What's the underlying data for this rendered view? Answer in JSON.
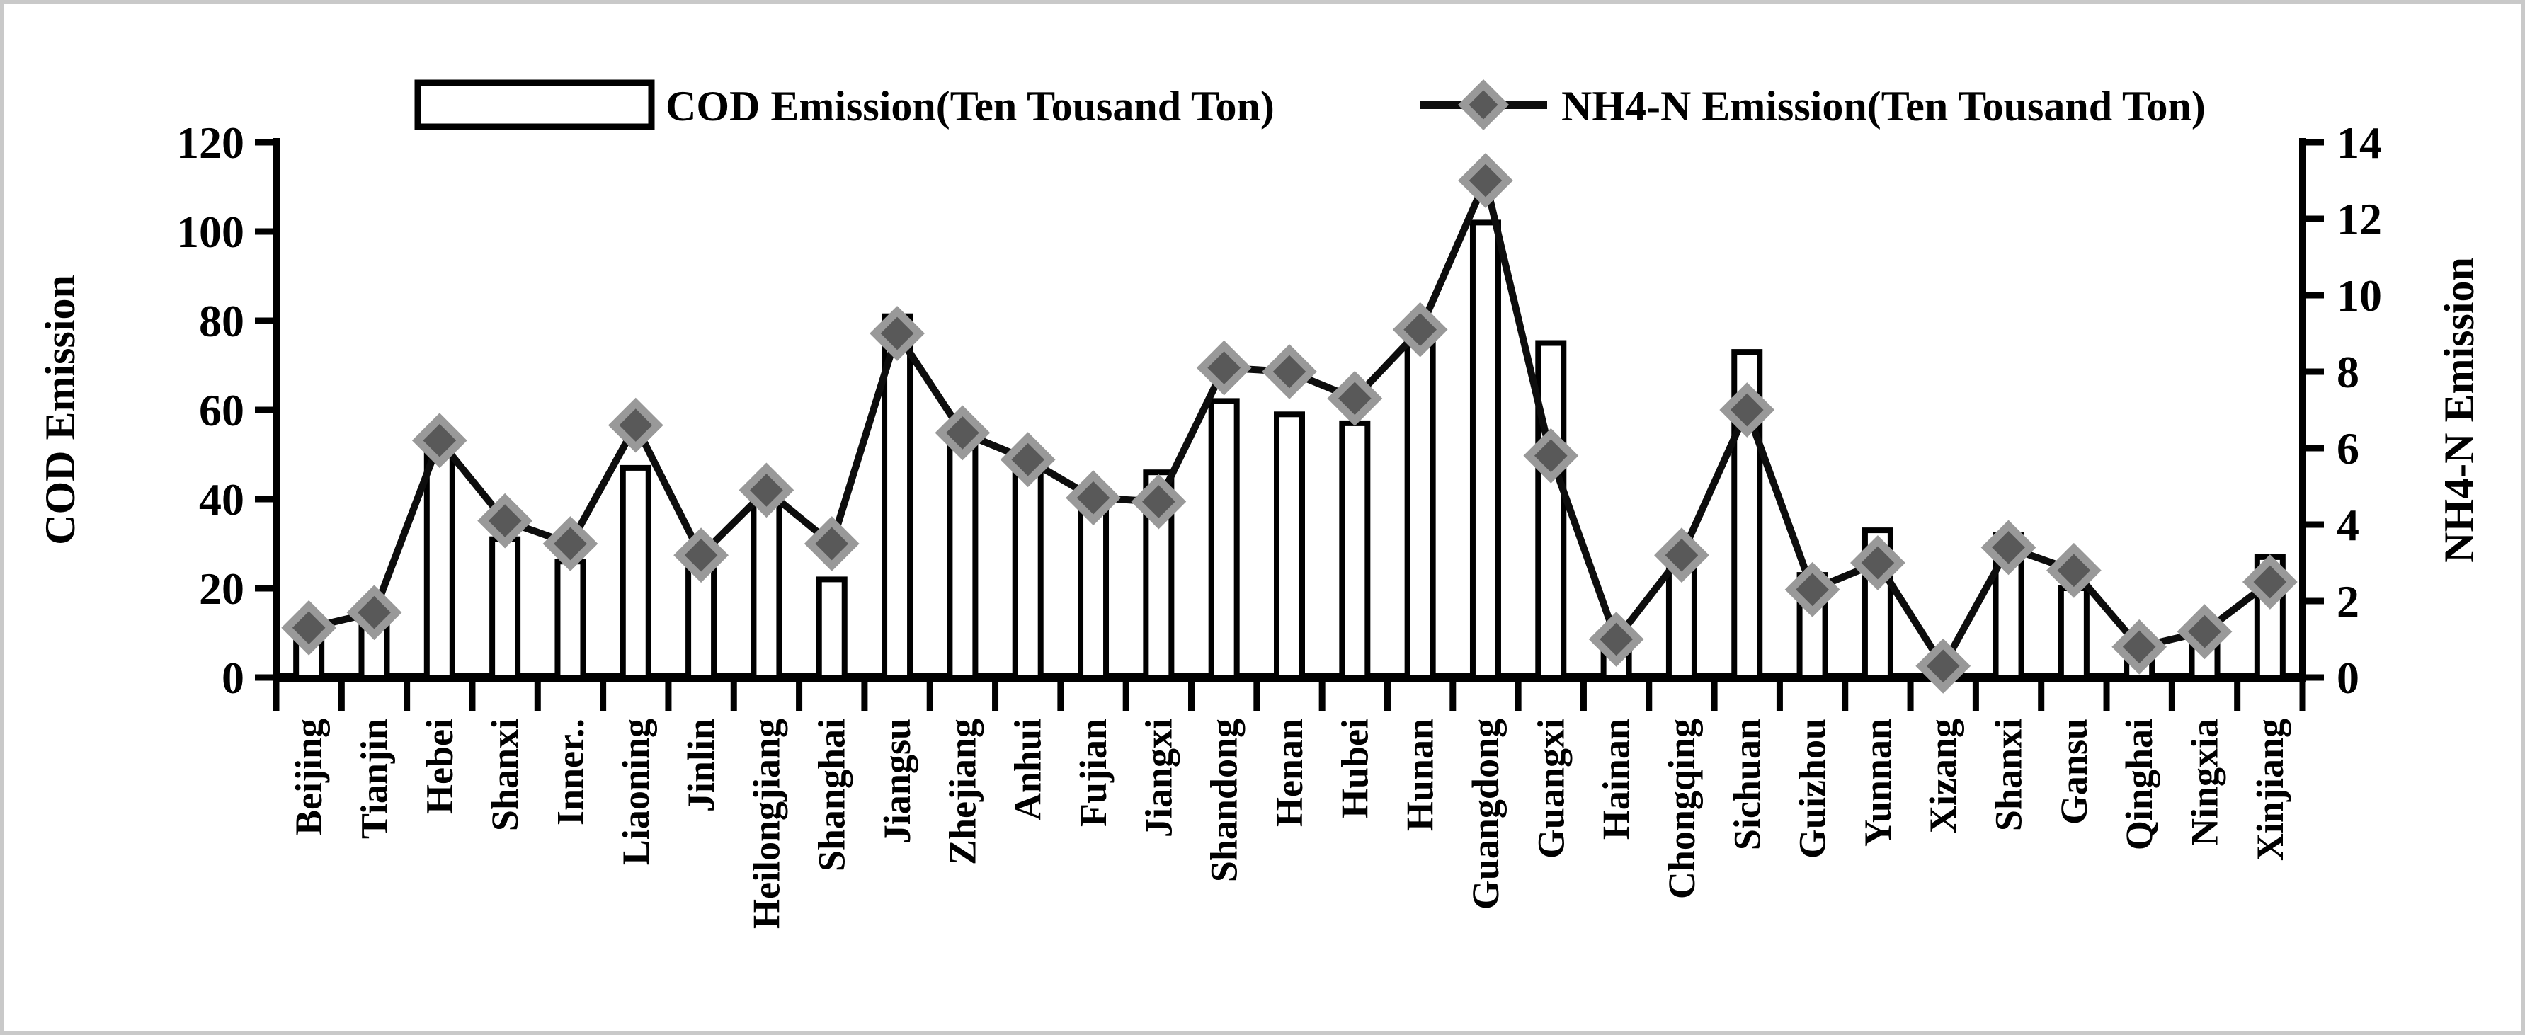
{
  "figure": {
    "description": "Dual-axis combo chart of COD and NH4-N emissions by Chinese province",
    "background": "#ffffff",
    "frame_color": "#c9c9c9"
  },
  "legend": {
    "bar_label": "COD Emission(Ten Tousand Ton)",
    "line_label": "NH4-N Emission(Ten Tousand Ton)"
  },
  "colors": {
    "bar_fill": "#ffffff",
    "bar_stroke": "#000000",
    "line_stroke": "#0d0d0d",
    "marker_fill": "#595959",
    "marker_edge": "#999999",
    "axis": "#000000",
    "text": "#000000"
  },
  "chart_data": {
    "type": "bar",
    "subtype": "bar+line dual axis",
    "categories": [
      "Beijing",
      "Tianjin",
      "Hebei",
      "Shanxi",
      "Inner..",
      "Liaoning",
      "Jinlin",
      "Heilongjiang",
      "Shanghai",
      "Jiangsu",
      "Zhejiang",
      "Anhui",
      "Fujian",
      "Jiangxi",
      "Shandong",
      "Henan",
      "Hubei",
      "Hunan",
      "Guangdong",
      "Guangxi",
      "Hainan",
      "Chongqing",
      "Sichuan",
      "Guizhou",
      "Yunnan",
      "Xizang",
      "Shanxi",
      "Gansu",
      "Qinghai",
      "Ningxia",
      "Xinjiang"
    ],
    "series": [
      {
        "name": "COD Emission(Ten Tousand Ton)",
        "type": "bar",
        "axis": "left",
        "values": [
          10,
          13,
          51,
          31,
          26,
          47,
          27,
          40,
          22,
          81,
          52,
          47,
          39,
          46,
          62,
          59,
          57,
          76,
          102,
          75,
          7,
          28,
          73,
          23,
          33,
          0,
          32,
          20,
          5,
          9,
          27
        ]
      },
      {
        "name": "NH4-N Emission(Ten Tousand Ton)",
        "type": "line",
        "axis": "right",
        "marker": "diamond",
        "values": [
          1.3,
          1.7,
          6.2,
          4.1,
          3.5,
          6.6,
          3.2,
          4.9,
          3.5,
          9.0,
          6.4,
          5.7,
          4.7,
          4.6,
          8.1,
          8.0,
          7.3,
          9.1,
          13.0,
          5.8,
          1.0,
          3.2,
          7.0,
          2.3,
          3.0,
          0.3,
          3.4,
          2.8,
          0.8,
          1.2,
          2.5
        ]
      }
    ],
    "left_axis": {
      "label": "COD Emission",
      "min": 0,
      "max": 120,
      "tick_step": 20,
      "ticks": [
        0,
        20,
        40,
        60,
        80,
        100,
        120
      ]
    },
    "right_axis": {
      "label": "NH4-N Emission",
      "min": 0,
      "max": 14,
      "tick_step": 2,
      "ticks": [
        0,
        2,
        4,
        6,
        8,
        10,
        12,
        14
      ]
    },
    "grid": false,
    "legend_position": "top",
    "x_tick_label_rotation": -90
  }
}
